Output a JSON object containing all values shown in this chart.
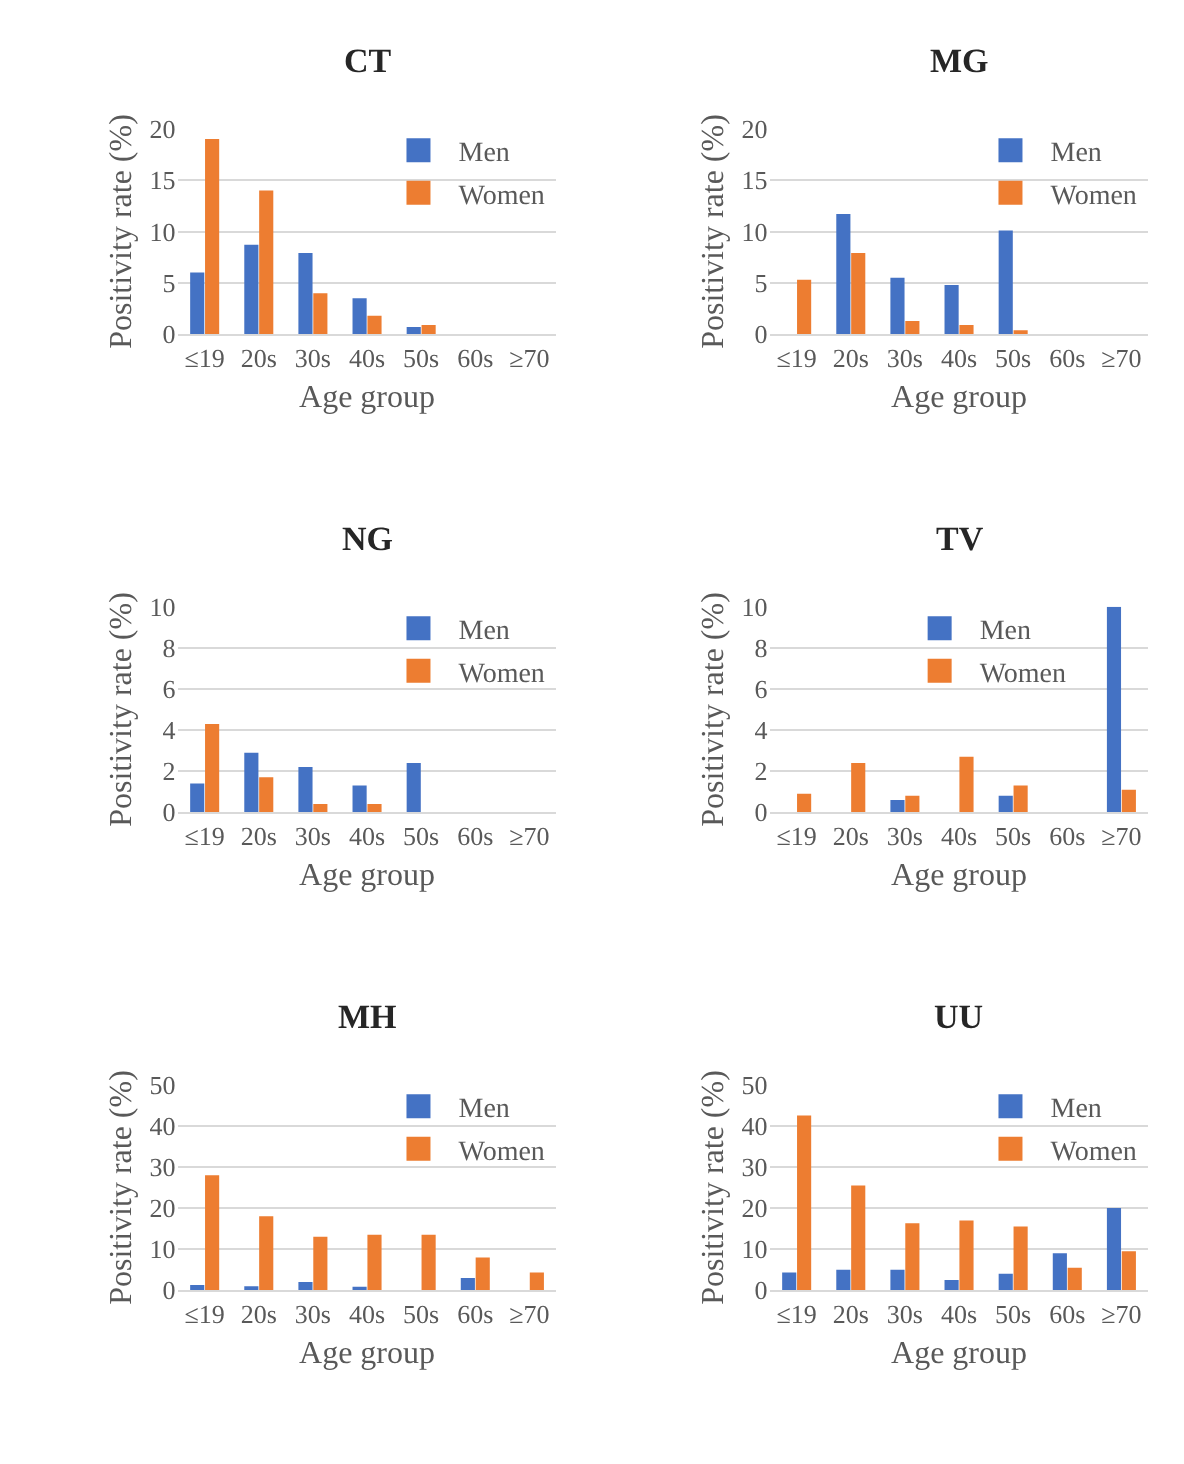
{
  "chart_data": [
    {
      "type": "bar",
      "title": "CT",
      "xlabel": "Age group",
      "ylabel": "Positivity rate (%)",
      "categories": [
        "≤19",
        "20s",
        "30s",
        "40s",
        "50s",
        "60s",
        "≥70"
      ],
      "ylim": [
        0,
        20
      ],
      "yticks": [
        0,
        5,
        10,
        15,
        20
      ],
      "grid": "y",
      "legend": "top right",
      "series": [
        {
          "name": "Men",
          "color": "#4472c4",
          "values": [
            6,
            8.7,
            7.9,
            3.5,
            0.7,
            null,
            null
          ]
        },
        {
          "name": "Women",
          "color": "#ed7d31",
          "values": [
            19,
            14,
            4,
            1.8,
            0.9,
            null,
            null
          ]
        }
      ]
    },
    {
      "type": "bar",
      "title": "MG",
      "xlabel": "Age group",
      "ylabel": "Positivity rate (%)",
      "categories": [
        "≤19",
        "20s",
        "30s",
        "40s",
        "50s",
        "60s",
        "≥70"
      ],
      "ylim": [
        0,
        20
      ],
      "yticks": [
        0,
        5,
        10,
        15,
        20
      ],
      "grid": "y",
      "legend": "top right",
      "series": [
        {
          "name": "Men",
          "color": "#4472c4",
          "values": [
            null,
            11.7,
            5.5,
            4.8,
            10.1,
            null,
            null
          ]
        },
        {
          "name": "Women",
          "color": "#ed7d31",
          "values": [
            5.3,
            7.9,
            1.3,
            0.9,
            0.4,
            null,
            null
          ]
        }
      ]
    },
    {
      "type": "bar",
      "title": "NG",
      "xlabel": "Age group",
      "ylabel": "Positivity rate (%)",
      "categories": [
        "≤19",
        "20s",
        "30s",
        "40s",
        "50s",
        "60s",
        "≥70"
      ],
      "ylim": [
        0,
        10
      ],
      "yticks": [
        0,
        2,
        4,
        6,
        8,
        10
      ],
      "grid": "y",
      "legend": "top right",
      "series": [
        {
          "name": "Men",
          "color": "#4472c4",
          "values": [
            1.4,
            2.9,
            2.2,
            1.3,
            2.4,
            null,
            null
          ]
        },
        {
          "name": "Women",
          "color": "#ed7d31",
          "values": [
            4.3,
            1.7,
            0.4,
            0.4,
            null,
            null,
            null
          ]
        }
      ]
    },
    {
      "type": "bar",
      "title": "TV",
      "xlabel": "Age group",
      "ylabel": "Positivity rate (%)",
      "categories": [
        "≤19",
        "20s",
        "30s",
        "40s",
        "50s",
        "60s",
        "≥70"
      ],
      "ylim": [
        0,
        10
      ],
      "yticks": [
        0,
        2,
        4,
        6,
        8,
        10
      ],
      "grid": "y",
      "legend": "top",
      "series": [
        {
          "name": "Men",
          "color": "#4472c4",
          "values": [
            null,
            null,
            0.6,
            null,
            0.8,
            null,
            10
          ]
        },
        {
          "name": "Women",
          "color": "#ed7d31",
          "values": [
            0.9,
            2.4,
            0.8,
            2.7,
            1.3,
            null,
            1.1
          ]
        }
      ]
    },
    {
      "type": "bar",
      "title": "MH",
      "xlabel": "Age group",
      "ylabel": "Positivity rate (%)",
      "categories": [
        "≤19",
        "20s",
        "30s",
        "40s",
        "50s",
        "60s",
        "≥70"
      ],
      "ylim": [
        0,
        50
      ],
      "yticks": [
        0,
        10,
        20,
        30,
        40,
        50
      ],
      "grid": "y",
      "legend": "top right",
      "series": [
        {
          "name": "Men",
          "color": "#4472c4",
          "values": [
            1.3,
            1.0,
            2.0,
            0.5,
            null,
            3.0,
            null
          ]
        },
        {
          "name": "Women",
          "color": "#ed7d31",
          "values": [
            28,
            18,
            13,
            13.5,
            13.5,
            8,
            4.3
          ]
        }
      ]
    },
    {
      "type": "bar",
      "title": "UU",
      "xlabel": "Age group",
      "ylabel": "Positivity rate (%)",
      "categories": [
        "≤19",
        "20s",
        "30s",
        "40s",
        "50s",
        "60s",
        "≥70"
      ],
      "ylim": [
        0,
        50
      ],
      "yticks": [
        0,
        10,
        20,
        30,
        40,
        50
      ],
      "grid": "y",
      "legend": "top right",
      "series": [
        {
          "name": "Men",
          "color": "#4472c4",
          "values": [
            4.3,
            5,
            5,
            2.5,
            4,
            9,
            20
          ]
        },
        {
          "name": "Women",
          "color": "#ed7d31",
          "values": [
            42.5,
            25.5,
            16.3,
            17,
            15.5,
            5.5,
            9.5
          ]
        }
      ]
    }
  ]
}
